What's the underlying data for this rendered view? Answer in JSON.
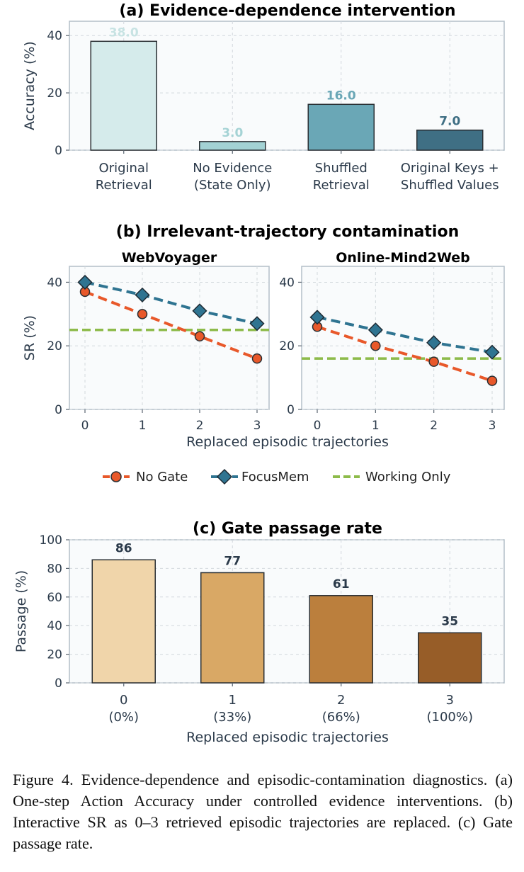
{
  "chart_data": [
    {
      "id": "a",
      "type": "bar",
      "title": "(a) Evidence-dependence intervention",
      "ylabel": "Accuracy (%)",
      "xlabel": "",
      "ylim": [
        0,
        45
      ],
      "yticks": [
        0,
        20,
        40
      ],
      "grid": true,
      "categories": [
        [
          "Original",
          "Retrieval"
        ],
        [
          "No Evidence",
          "(State Only)"
        ],
        [
          "Shuffled",
          "Retrieval"
        ],
        [
          "Original Keys +",
          "Shuffled Values"
        ]
      ],
      "values": [
        38.0,
        3.0,
        16.0,
        7.0
      ],
      "value_labels": [
        "38.0",
        "3.0",
        "16.0",
        "7.0"
      ],
      "bar_colors": [
        "#d5ebeb",
        "#a3d2d4",
        "#6aa7b6",
        "#3f6f84"
      ],
      "label_colors": [
        "#c7e3e3",
        "#a5d3d5",
        "#6aa7b6",
        "#3f6f84"
      ]
    },
    {
      "id": "b",
      "type": "line",
      "title": "(b) Irrelevant-trajectory contamination",
      "xlabel": "Replaced episodic trajectories",
      "ylabel": "SR (%)",
      "legend": "bottom-center",
      "grid": true,
      "legend_entries": [
        {
          "name": "No Gate",
          "color": "#e8582a",
          "marker": "circle",
          "style": "dashed"
        },
        {
          "name": "FocusMem",
          "color": "#2f7491",
          "marker": "diamond",
          "style": "dashed"
        },
        {
          "name": "Working Only",
          "color": "#8dbb4a",
          "marker": "none",
          "style": "dashed"
        }
      ],
      "panels": [
        {
          "title": "WebVoyager",
          "x": [
            0,
            1,
            2,
            3
          ],
          "ylim": [
            0,
            45
          ],
          "yticks": [
            0,
            20,
            40
          ],
          "series": [
            {
              "name": "No Gate",
              "values": [
                37,
                30,
                23,
                16
              ]
            },
            {
              "name": "FocusMem",
              "values": [
                40,
                36,
                31,
                27
              ]
            }
          ],
          "working_only": 25
        },
        {
          "title": "Online-Mind2Web",
          "x": [
            0,
            1,
            2,
            3
          ],
          "ylim": [
            0,
            45
          ],
          "yticks": [
            0,
            20,
            40
          ],
          "series": [
            {
              "name": "No Gate",
              "values": [
                26,
                20,
                15,
                9
              ]
            },
            {
              "name": "FocusMem",
              "values": [
                29,
                25,
                21,
                18
              ]
            }
          ],
          "working_only": 16
        }
      ]
    },
    {
      "id": "c",
      "type": "bar",
      "title": "(c) Gate passage rate",
      "xlabel": "Replaced episodic trajectories",
      "ylabel": "Passage (%)",
      "ylim": [
        0,
        100
      ],
      "yticks": [
        0,
        20,
        40,
        60,
        80,
        100
      ],
      "grid": true,
      "categories": [
        [
          "0",
          "(0%)"
        ],
        [
          "1",
          "(33%)"
        ],
        [
          "2",
          "(66%)"
        ],
        [
          "3",
          "(100%)"
        ]
      ],
      "values": [
        86,
        77,
        61,
        35
      ],
      "value_labels": [
        "86",
        "77",
        "61",
        "35"
      ],
      "bar_colors": [
        "#f0d5aa",
        "#d9a865",
        "#bb7f3d",
        "#975d28"
      ],
      "label_color": "#2b3a4a"
    }
  ],
  "caption": "Figure 4. Evidence-dependence and episodic-contamination diagnostics. (a) One-step Action Accuracy under controlled evidence interventions. (b) Interactive SR as 0–3 retrieved episodic trajectories are replaced. (c) Gate passage rate."
}
